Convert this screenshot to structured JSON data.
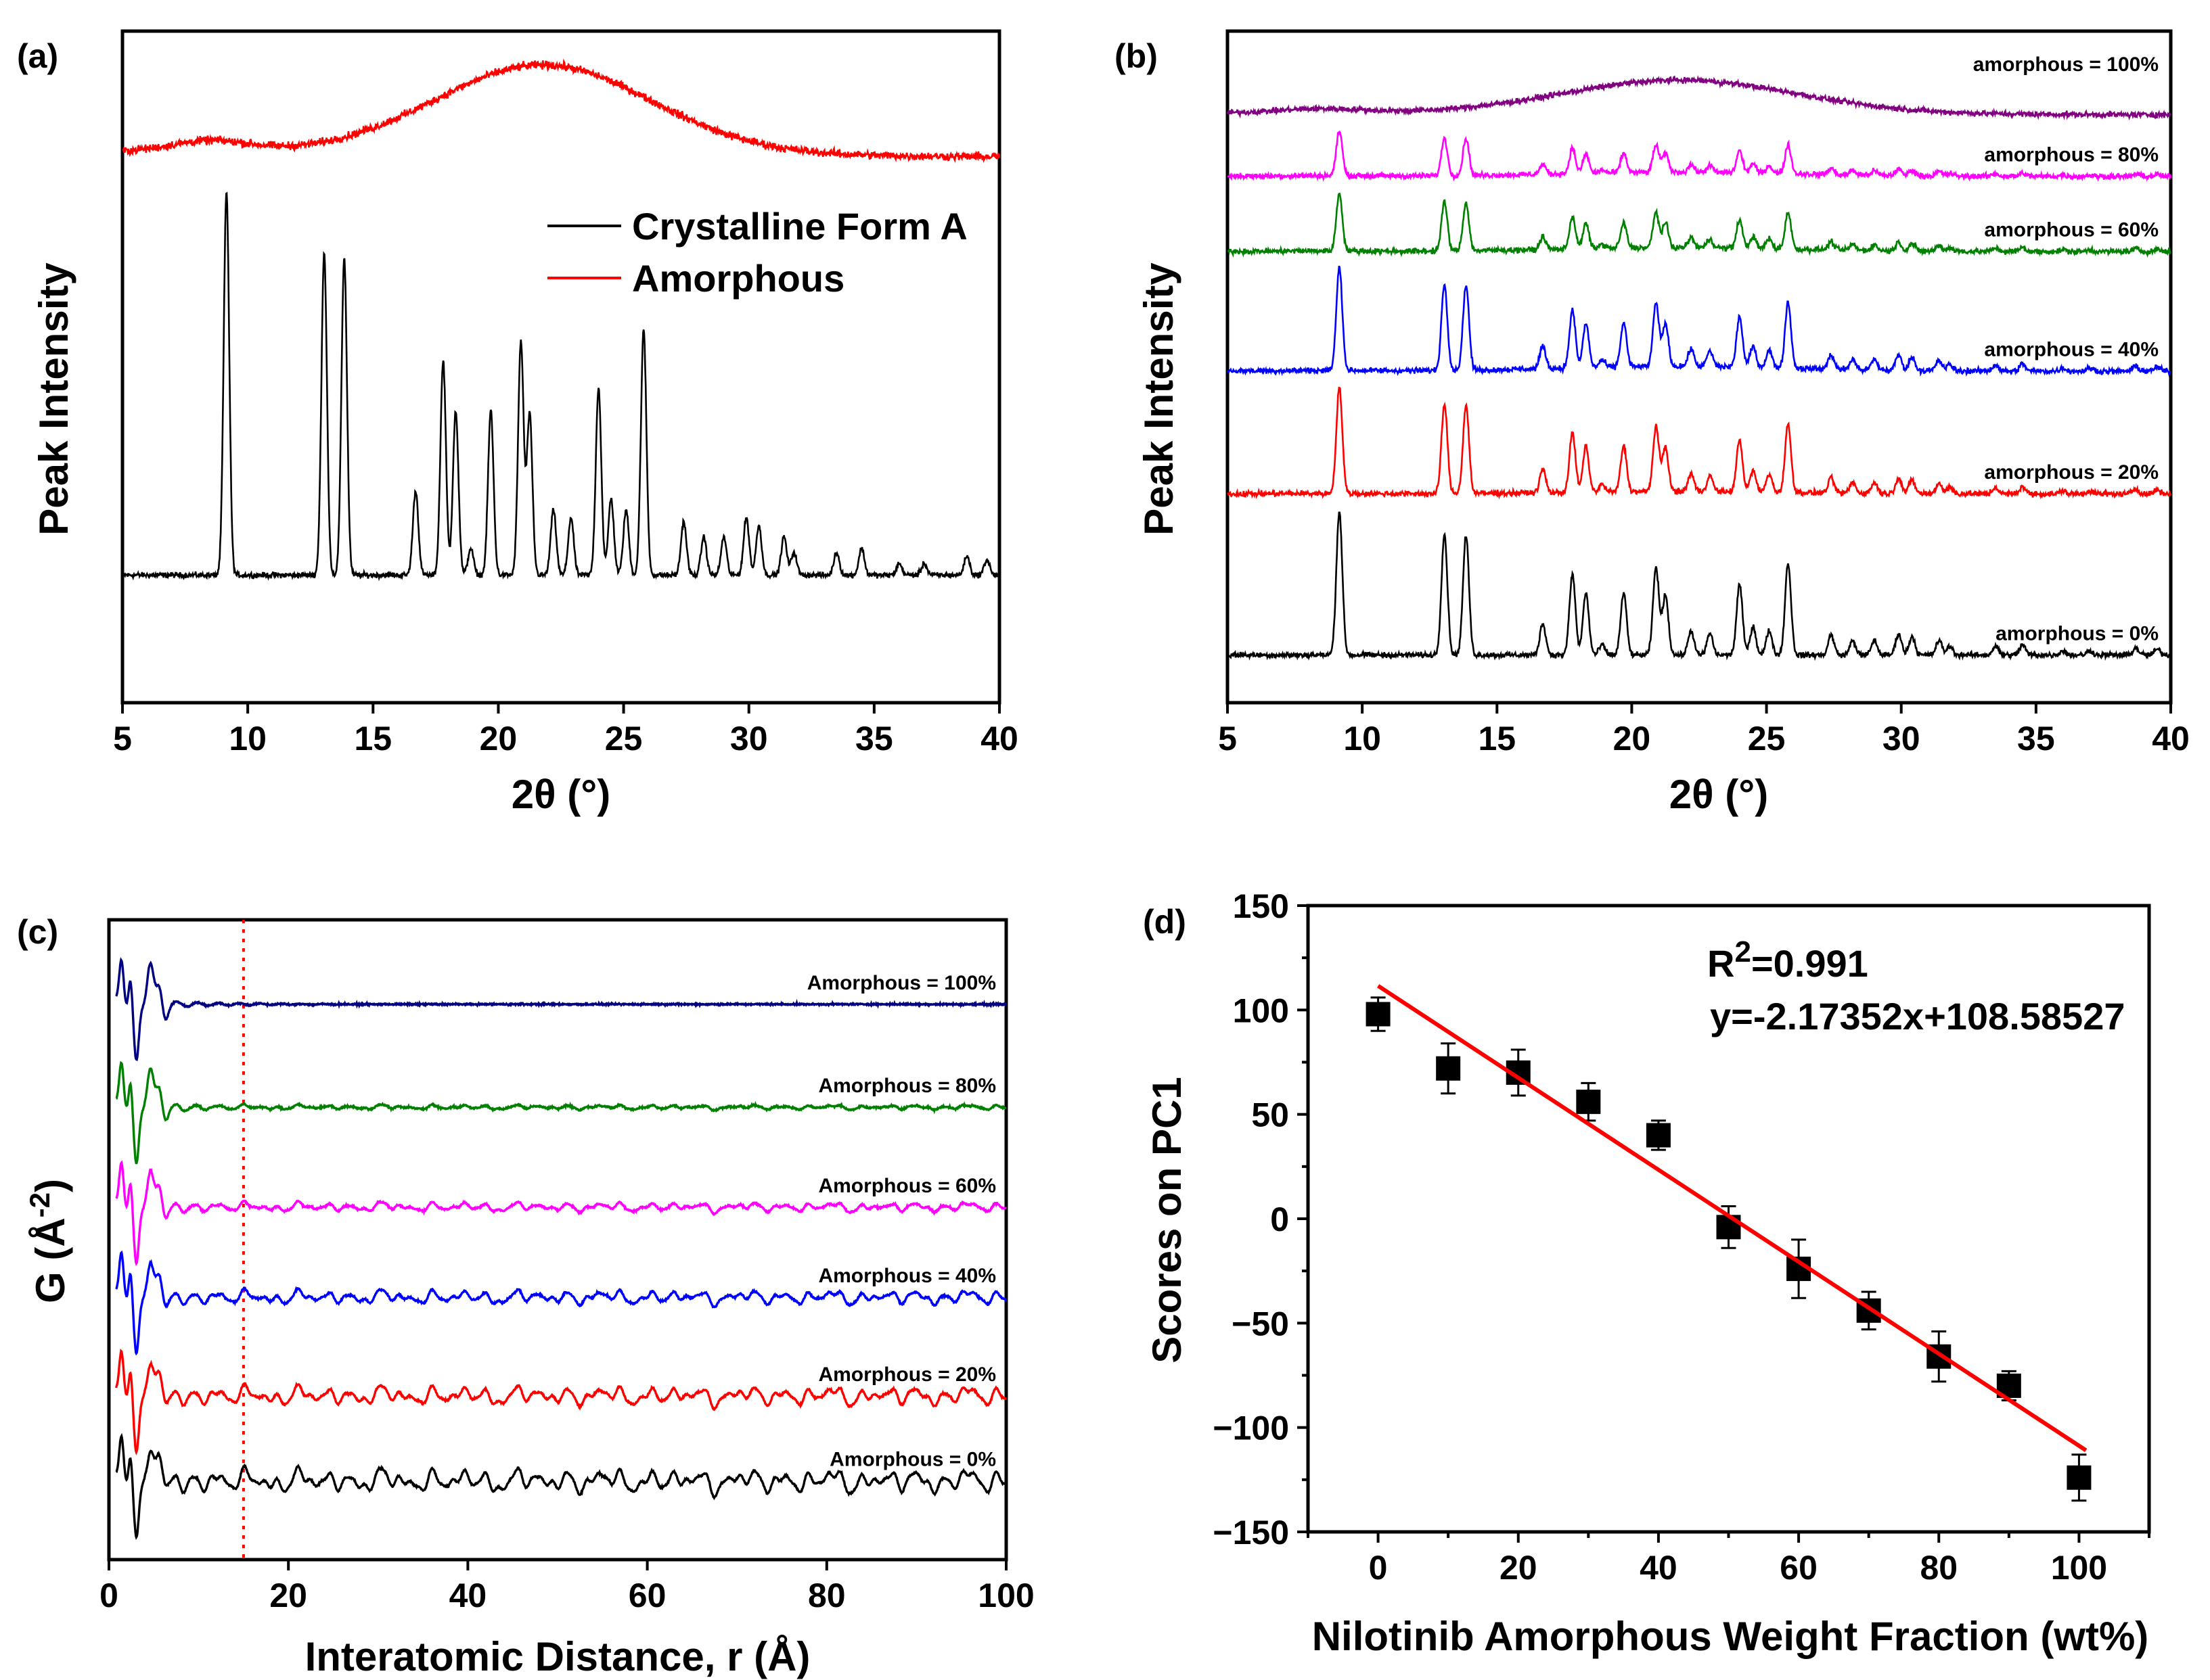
{
  "chart_data": [
    {
      "panel": "(a)",
      "type": "line",
      "xlabel": "2θ (°)",
      "ylabel": "Peak Intensity",
      "xlim": [
        5,
        40
      ],
      "xticks": [
        5,
        10,
        15,
        20,
        25,
        30,
        35,
        40
      ],
      "legend": {
        "placement": "top-right",
        "entries": [
          "Crystalline Form A",
          "Amorphous"
        ]
      },
      "series": [
        {
          "name": "Crystalline Form A",
          "color": "#000000",
          "kind": "crystalline",
          "offset": 0.19,
          "scale": 0.57
        },
        {
          "name": "Amorphous",
          "color": "#ff0000",
          "kind": "amorphous",
          "offset": 0.82,
          "scale": 0.14
        }
      ],
      "crystalline_peaks_2theta_height": [
        [
          9.15,
          1.0
        ],
        [
          13.05,
          0.84
        ],
        [
          13.85,
          0.83
        ],
        [
          16.7,
          0.22
        ],
        [
          17.8,
          0.56
        ],
        [
          18.3,
          0.43
        ],
        [
          18.9,
          0.07
        ],
        [
          19.7,
          0.43
        ],
        [
          20.9,
          0.61
        ],
        [
          21.25,
          0.42
        ],
        [
          22.2,
          0.17
        ],
        [
          22.9,
          0.15
        ],
        [
          24.0,
          0.49
        ],
        [
          24.5,
          0.2
        ],
        [
          25.1,
          0.17
        ],
        [
          25.8,
          0.64
        ],
        [
          27.4,
          0.14
        ],
        [
          28.2,
          0.1
        ],
        [
          29.0,
          0.1
        ],
        [
          29.9,
          0.15
        ],
        [
          30.4,
          0.13
        ],
        [
          31.4,
          0.1
        ],
        [
          31.8,
          0.06
        ],
        [
          33.5,
          0.06
        ],
        [
          34.5,
          0.07
        ],
        [
          36.0,
          0.03
        ],
        [
          37.0,
          0.03
        ],
        [
          38.7,
          0.05
        ],
        [
          39.5,
          0.04
        ]
      ]
    },
    {
      "panel": "(b)",
      "type": "line",
      "xlabel": "2θ (°)",
      "ylabel": "Peak Intensity",
      "xlim": [
        5,
        40
      ],
      "xticks": [
        5,
        10,
        15,
        20,
        25,
        30,
        35,
        40
      ],
      "series": [
        {
          "name": "amorphous = 100%",
          "amorphous_pct": 100,
          "color": "#800080",
          "offset": 0.878,
          "scale": 0.053
        },
        {
          "name": "amorphous = 80%",
          "amorphous_pct": 80,
          "color": "#ff00ff",
          "offset": 0.784,
          "scale": 0.067
        },
        {
          "name": "amorphous = 60%",
          "amorphous_pct": 60,
          "color": "#008000",
          "offset": 0.672,
          "scale": 0.086
        },
        {
          "name": "amorphous = 40%",
          "amorphous_pct": 40,
          "color": "#0000ff",
          "offset": 0.494,
          "scale": 0.153
        },
        {
          "name": "amorphous = 20%",
          "amorphous_pct": 20,
          "color": "#ff0000",
          "offset": 0.311,
          "scale": 0.158
        },
        {
          "name": "amorphous = 0%",
          "amorphous_pct": 0,
          "color": "#000000",
          "offset": 0.071,
          "scale": 0.214
        }
      ]
    },
    {
      "panel": "(c)",
      "type": "line",
      "xlabel": "Interatomic Distance, r (Å)",
      "ylabel_main": "G (Å",
      "ylabel_sup": "-2",
      "ylabel_end": ")",
      "xlim": [
        0,
        100
      ],
      "xticks": [
        0,
        20,
        40,
        60,
        80,
        100
      ],
      "reference_line_r": 15,
      "reference_line_color": "#ff0000",
      "series": [
        {
          "name": "Amorphous = 100%",
          "amorphous_pct": 100,
          "color": "#000080",
          "offset": 0.868
        },
        {
          "name": "Amorphous = 80%",
          "amorphous_pct": 80,
          "color": "#008000",
          "offset": 0.707
        },
        {
          "name": "Amorphous = 60%",
          "amorphous_pct": 60,
          "color": "#ff00ff",
          "offset": 0.551
        },
        {
          "name": "Amorphous = 40%",
          "amorphous_pct": 40,
          "color": "#0000ff",
          "offset": 0.41
        },
        {
          "name": "Amorphous = 20%",
          "amorphous_pct": 20,
          "color": "#ff0000",
          "offset": 0.256
        },
        {
          "name": "Amorphous = 0%",
          "amorphous_pct": 0,
          "color": "#000000",
          "offset": 0.123
        }
      ]
    },
    {
      "panel": "(d)",
      "type": "scatter",
      "xlabel": "Nilotinib Amorphous Weight Fraction (wt%)",
      "ylabel": "Scores on PC1",
      "xlim": [
        -10,
        110
      ],
      "ylim": [
        -150,
        150
      ],
      "xticks": [
        0,
        20,
        40,
        60,
        80,
        100
      ],
      "yticks": [
        -150,
        -100,
        -50,
        0,
        50,
        100,
        150
      ],
      "ytick_labels": [
        "−150",
        "−100",
        "−50",
        "0",
        "50",
        "100",
        "150"
      ],
      "x": [
        0,
        10,
        20,
        30,
        40,
        50,
        60,
        70,
        80,
        90,
        100
      ],
      "y": [
        98,
        72,
        70,
        56,
        40,
        -4,
        -24,
        -44,
        -66,
        -80,
        -124
      ],
      "yerr": [
        8,
        12,
        11,
        9,
        7,
        10,
        14,
        9,
        12,
        7,
        11
      ],
      "fit": {
        "slope": -2.17352,
        "intercept": 108.58527,
        "x_range": [
          0,
          101
        ],
        "color": "#ff0000"
      },
      "annotation_r2_main": "R",
      "annotation_r2_sup": "2",
      "annotation_r2_value": "=0.991",
      "annotation_equation": "y=-2.17352x+108.58527"
    }
  ]
}
